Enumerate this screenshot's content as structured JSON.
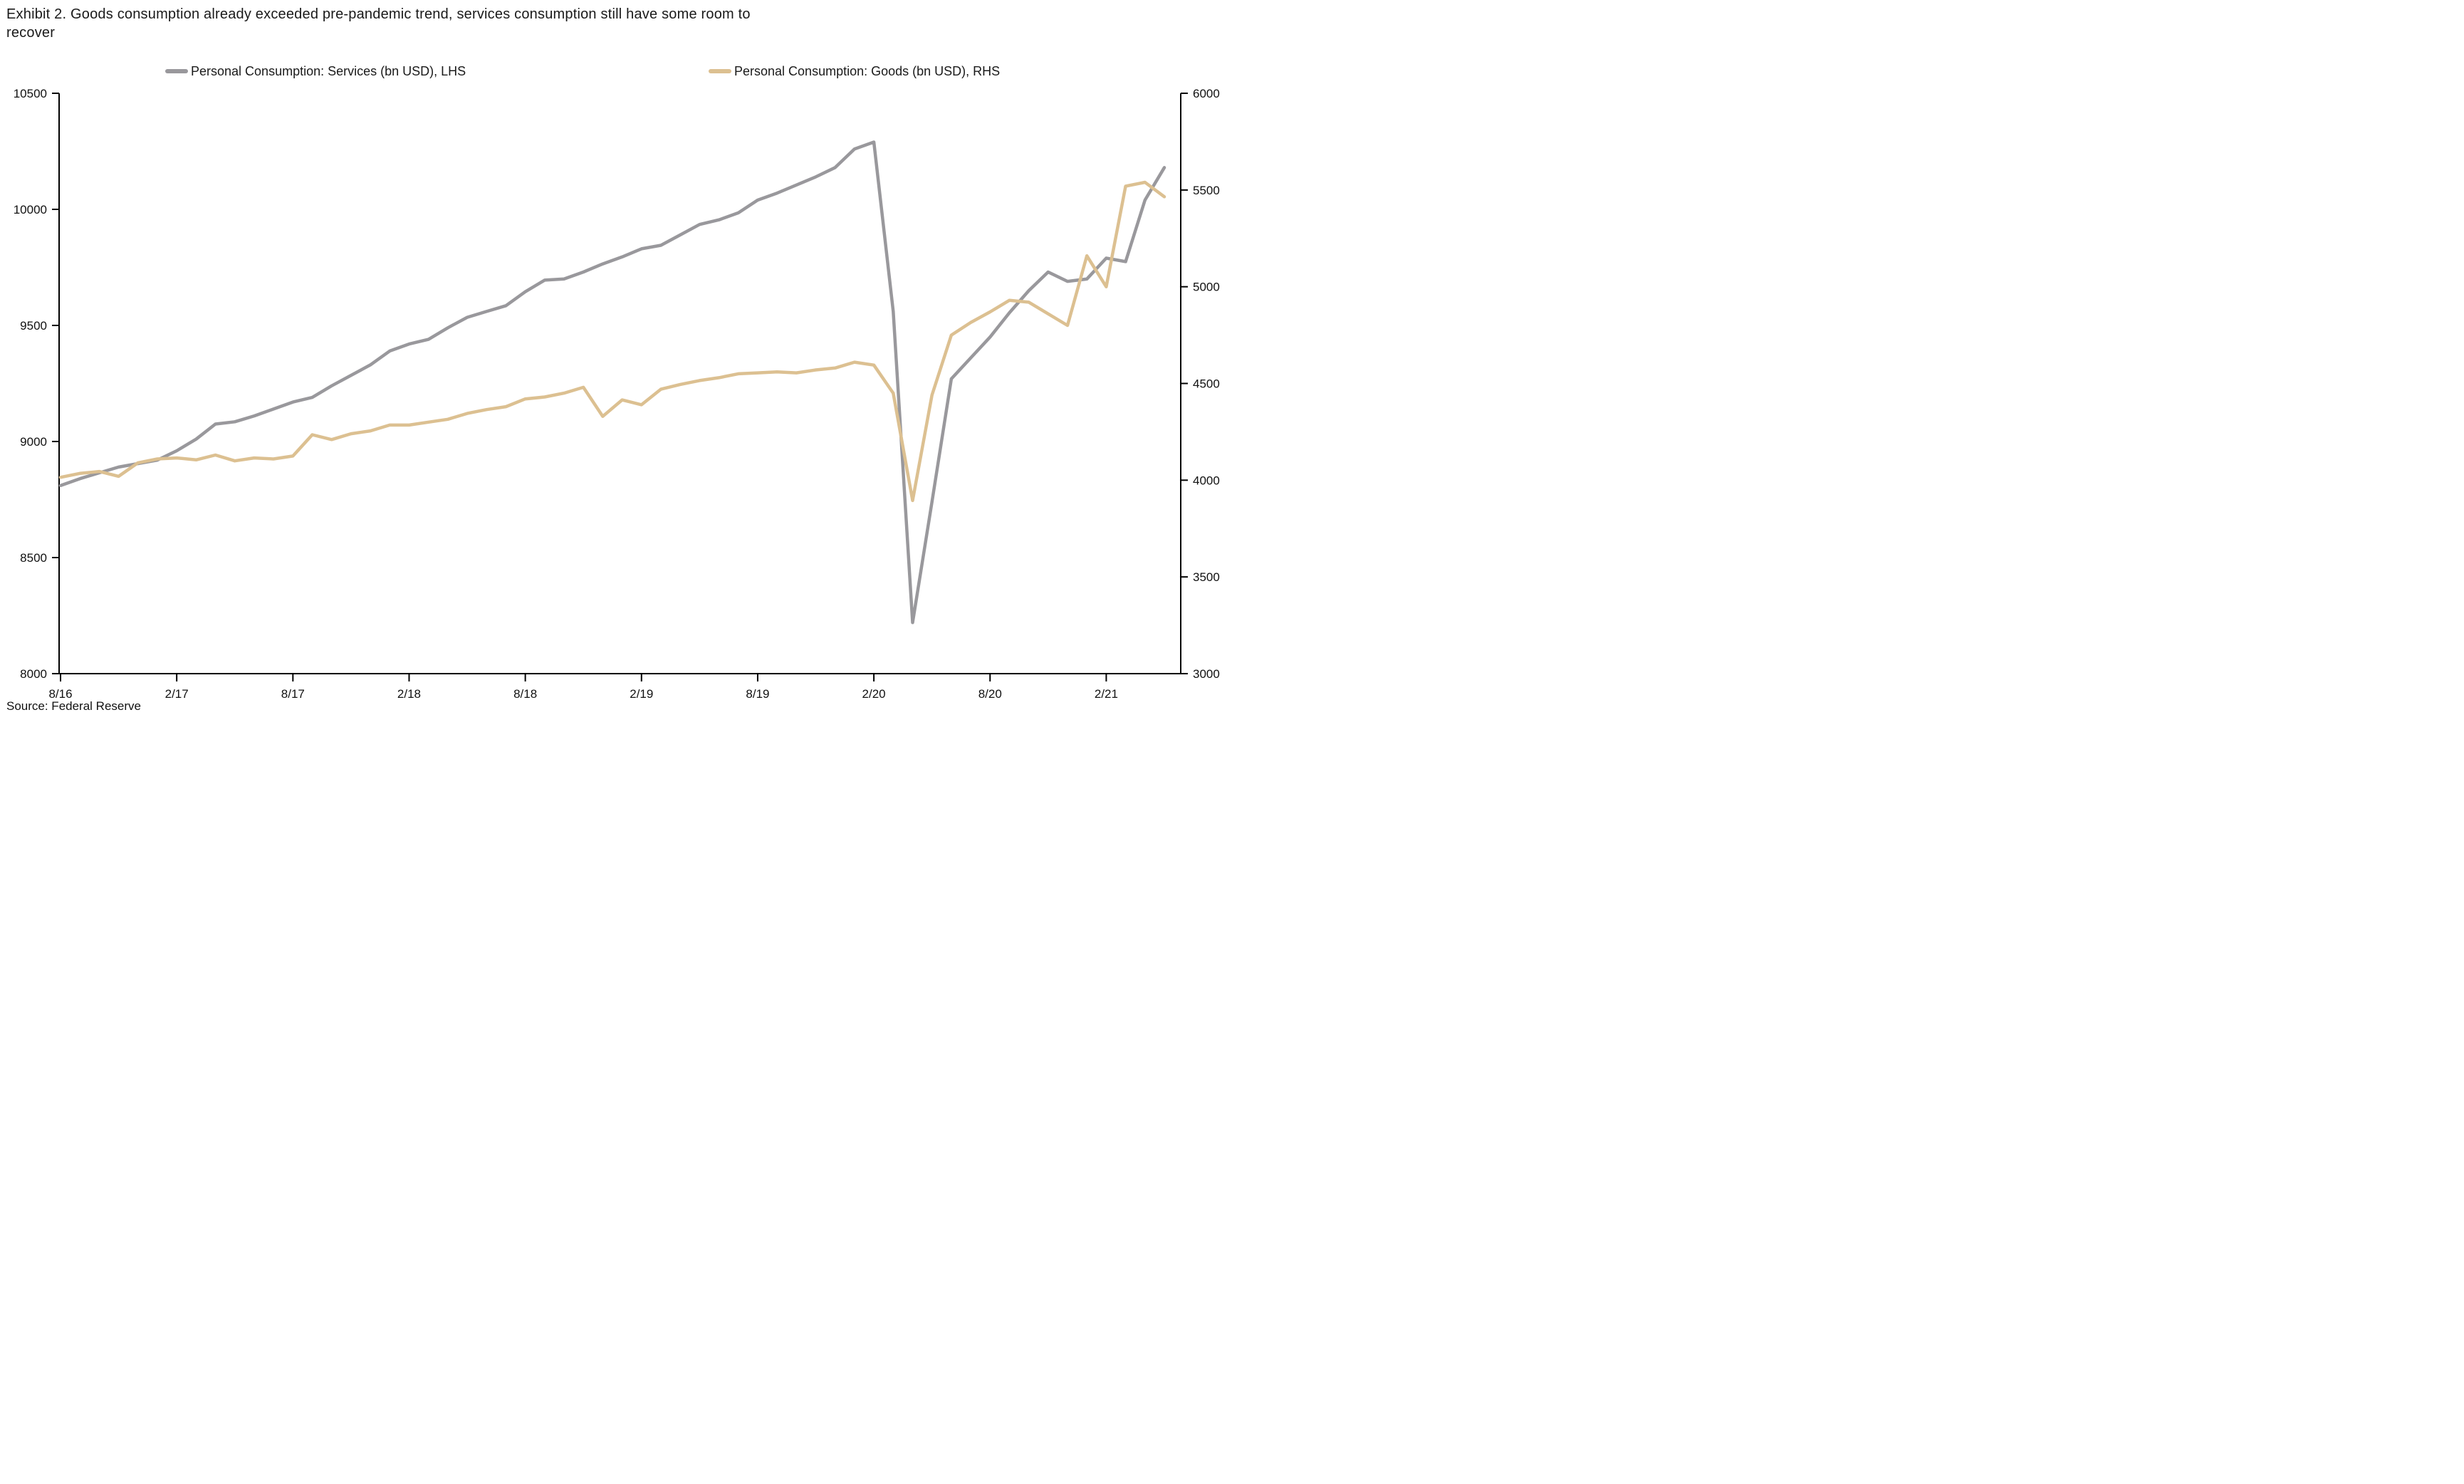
{
  "title_lines": {
    "line1": "Exhibit 2. Goods consumption already exceeded pre-pandemic trend, services consumption still have some room to",
    "line2": "recover"
  },
  "source_note": "Source: Federal Reserve",
  "legend": {
    "services_label": "Personal Consumption: Services (bn USD), LHS",
    "goods_label": "Personal Consumption: Goods (bn USD), RHS"
  },
  "colors": {
    "services_line": "#99989c",
    "goods_line": "#dcc091",
    "axis": "#000000",
    "text": "#1a1a1a"
  },
  "chart_data": {
    "type": "line",
    "title": "Exhibit 2. Goods consumption already exceeded pre-pandemic trend, services consumption still have some room to recover",
    "x_start": "8/16",
    "x_end": "5/21",
    "frequency": "monthly",
    "x_tick_labels": [
      "8/16",
      "2/17",
      "8/17",
      "2/18",
      "8/18",
      "2/19",
      "8/19",
      "2/20",
      "8/20",
      "2/21"
    ],
    "x_tick_month_index": [
      0,
      6,
      12,
      18,
      24,
      30,
      36,
      42,
      48,
      54
    ],
    "grid": "off",
    "legend_position": "top",
    "left_axis": {
      "min": 8000,
      "max": 10500,
      "tick_step": 500,
      "ticks": [
        8000,
        8500,
        9000,
        9500,
        10000,
        10500
      ]
    },
    "right_axis": {
      "min": 3000,
      "max": 6000,
      "tick_step": 500,
      "ticks": [
        3000,
        3500,
        4000,
        4500,
        5000,
        5500,
        6000
      ]
    },
    "series": [
      {
        "name": "Personal Consumption: Services (bn USD), LHS",
        "axis": "left",
        "color": "#99989c",
        "values": [
          8810,
          8840,
          8865,
          8890,
          8905,
          8920,
          8960,
          9010,
          9075,
          9085,
          9110,
          9140,
          9170,
          9190,
          9240,
          9285,
          9330,
          9390,
          9420,
          9440,
          9490,
          9535,
          9560,
          9585,
          9645,
          9695,
          9700,
          9730,
          9765,
          9795,
          9830,
          9845,
          9890,
          9935,
          9955,
          9985,
          10040,
          10070,
          10105,
          10140,
          10180,
          10260,
          10290,
          9560,
          8220,
          8740,
          9270,
          9360,
          9450,
          9555,
          9650,
          9730,
          9690,
          9700,
          9790,
          9775,
          10040,
          10180
        ]
      },
      {
        "name": "Personal Consumption: Goods (bn USD), RHS",
        "axis": "right",
        "color": "#dcc091",
        "values": [
          4015,
          4035,
          4045,
          4020,
          4090,
          4110,
          4115,
          4105,
          4130,
          4100,
          4115,
          4110,
          4125,
          4235,
          4210,
          4240,
          4255,
          4285,
          4285,
          4300,
          4315,
          4345,
          4365,
          4380,
          4420,
          4430,
          4450,
          4480,
          4330,
          4415,
          4390,
          4470,
          4495,
          4515,
          4530,
          4550,
          4555,
          4560,
          4555,
          4570,
          4580,
          4610,
          4595,
          4450,
          3895,
          4440,
          4750,
          4815,
          4870,
          4930,
          4920,
          4860,
          4800,
          5160,
          5000,
          5520,
          5540,
          5465
        ]
      }
    ]
  }
}
